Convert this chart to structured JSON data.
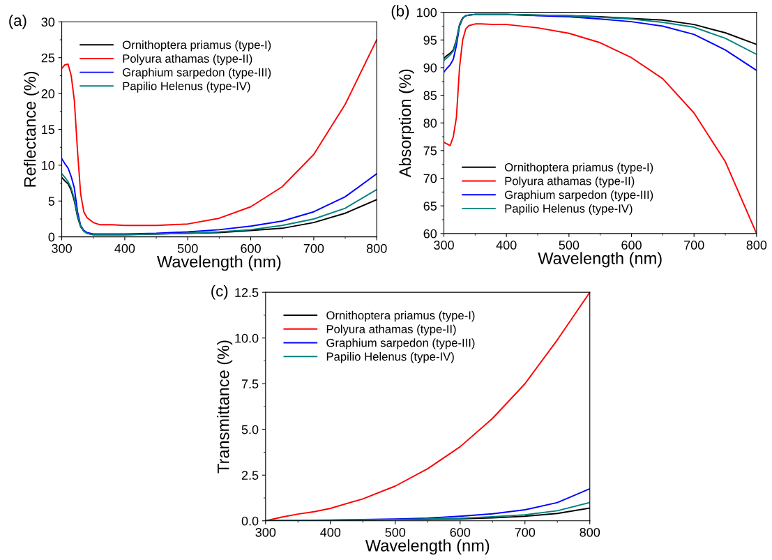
{
  "chart_data": [
    {
      "type": "line",
      "title": "(a)",
      "xlabel": "Wavelength (nm)",
      "ylabel": "Reflectance (%)",
      "xlim": [
        300,
        800
      ],
      "ylim": [
        0,
        30
      ],
      "xticks": [
        300,
        400,
        500,
        600,
        700,
        800
      ],
      "yticks": [
        0,
        5,
        10,
        15,
        20,
        25,
        30
      ],
      "legend": "top left",
      "grid": false,
      "line_style": "solid",
      "x": [
        300,
        305,
        310,
        315,
        320,
        325,
        330,
        335,
        340,
        350,
        360,
        380,
        400,
        450,
        500,
        550,
        600,
        650,
        700,
        750,
        800
      ],
      "series": [
        {
          "name": "Ornithoptera priamus (type-I)",
          "color": "#000000",
          "values": [
            8.3,
            7.8,
            7.4,
            6.5,
            5.0,
            2.8,
            1.4,
            0.8,
            0.5,
            0.3,
            0.3,
            0.3,
            0.3,
            0.4,
            0.5,
            0.6,
            0.9,
            1.2,
            2.0,
            3.3,
            5.2
          ]
        },
        {
          "name": "Polyura athamas (type-II)",
          "color": "#ff0000",
          "values": [
            23.5,
            24,
            24.1,
            22.5,
            19,
            12,
            6,
            3.5,
            2.7,
            2.0,
            1.7,
            1.7,
            1.6,
            1.6,
            1.8,
            2.6,
            4.2,
            7.0,
            11.5,
            18.5,
            27.5
          ]
        },
        {
          "name": "Graphium sarpedon (type-III)",
          "color": "#0000ff",
          "values": [
            10.9,
            10.2,
            9.6,
            8.4,
            6.8,
            3.5,
            1.6,
            0.9,
            0.6,
            0.4,
            0.4,
            0.4,
            0.4,
            0.5,
            0.7,
            1.0,
            1.5,
            2.2,
            3.5,
            5.6,
            8.8
          ]
        },
        {
          "name": "Papilio Helenus (type-IV)",
          "color": "#008080",
          "values": [
            8.8,
            8.3,
            7.7,
            6.8,
            5.3,
            3.0,
            1.5,
            0.8,
            0.5,
            0.3,
            0.3,
            0.3,
            0.3,
            0.4,
            0.5,
            0.7,
            1.0,
            1.6,
            2.5,
            4.0,
            6.6
          ]
        }
      ]
    },
    {
      "type": "line",
      "title": "(b)",
      "xlabel": "Wavelength (nm)",
      "ylabel": "Absorption (%)",
      "xlim": [
        300,
        800
      ],
      "ylim": [
        60,
        100
      ],
      "xticks": [
        300,
        400,
        500,
        600,
        700,
        800
      ],
      "yticks": [
        60,
        65,
        70,
        75,
        80,
        85,
        90,
        95,
        100
      ],
      "legend": "bottom left",
      "grid": false,
      "line_style": "solid",
      "x": [
        300,
        305,
        310,
        315,
        320,
        325,
        330,
        335,
        340,
        350,
        360,
        380,
        400,
        450,
        500,
        550,
        600,
        650,
        700,
        750,
        800
      ],
      "series": [
        {
          "name": "Ornithoptera priamus (type-I)",
          "color": "#000000",
          "values": [
            91.7,
            92.2,
            92.6,
            93.2,
            95.0,
            97.8,
            99.0,
            99.4,
            99.5,
            99.6,
            99.6,
            99.6,
            99.6,
            99.5,
            99.4,
            99.2,
            98.9,
            98.6,
            97.8,
            96.3,
            94.2
          ]
        },
        {
          "name": "Polyura athamas (type-II)",
          "color": "#ff0000",
          "values": [
            76.5,
            76.2,
            75.9,
            77.5,
            81,
            90,
            95,
            97,
            97.6,
            97.9,
            97.9,
            97.8,
            97.8,
            97.2,
            96.2,
            94.5,
            91.8,
            88,
            81.8,
            73,
            60
          ]
        },
        {
          "name": "Graphium sarpedon (type-III)",
          "color": "#0000ff",
          "values": [
            89.2,
            89.9,
            90.5,
            91.5,
            94,
            97.5,
            98.9,
            99.4,
            99.5,
            99.6,
            99.6,
            99.6,
            99.6,
            99.4,
            99.2,
            98.8,
            98.3,
            97.5,
            96,
            93.2,
            89.5
          ]
        },
        {
          "name": "Papilio Helenus (type-IV)",
          "color": "#008080",
          "values": [
            91.3,
            91.8,
            92.3,
            93,
            94.8,
            97.6,
            98.9,
            99.4,
            99.5,
            99.6,
            99.6,
            99.6,
            99.6,
            99.5,
            99.4,
            99.1,
            98.8,
            98.2,
            97.3,
            95.3,
            92.4
          ]
        }
      ]
    },
    {
      "type": "line",
      "title": "(c)",
      "xlabel": "Wavelength (nm)",
      "ylabel": "Transmittance (%)",
      "xlim": [
        300,
        800
      ],
      "ylim": [
        0,
        12.5
      ],
      "xticks": [
        300,
        400,
        500,
        600,
        700,
        800
      ],
      "yticks": [
        {
          "value": 0,
          "label": "0.0"
        },
        {
          "value": 2.5,
          "label": "2.5"
        },
        {
          "value": 5,
          "label": "5.0"
        },
        {
          "value": 7.5,
          "label": "7.5"
        },
        {
          "value": 10,
          "label": "10.0"
        },
        {
          "value": 12.5,
          "label": "12.5"
        }
      ],
      "legend": "top left",
      "grid": false,
      "line_style": "solid",
      "x": [
        300,
        325,
        350,
        375,
        400,
        450,
        500,
        550,
        600,
        650,
        700,
        750,
        800
      ],
      "series": [
        {
          "name": "Ornithoptera priamus (type-I)",
          "color": "#000000",
          "values": [
            0,
            0.01,
            0.01,
            0.02,
            0.03,
            0.04,
            0.06,
            0.08,
            0.11,
            0.16,
            0.25,
            0.4,
            0.7
          ]
        },
        {
          "name": "Polyura athamas (type-II)",
          "color": "#ff0000",
          "values": [
            0,
            0.2,
            0.37,
            0.5,
            0.68,
            1.2,
            1.9,
            2.85,
            4.05,
            5.6,
            7.5,
            9.9,
            12.5
          ]
        },
        {
          "name": "Graphium sarpedon (type-III)",
          "color": "#0000ff",
          "values": [
            null,
            null,
            null,
            0.03,
            0.04,
            0.07,
            0.1,
            0.15,
            0.25,
            0.38,
            0.6,
            1.0,
            1.75
          ]
        },
        {
          "name": "Papilio Helenus (type-IV)",
          "color": "#008080",
          "values": [
            0,
            0.01,
            0.01,
            0.02,
            0.03,
            0.05,
            0.07,
            0.1,
            0.14,
            0.22,
            0.33,
            0.55,
            1.0
          ]
        }
      ]
    }
  ]
}
